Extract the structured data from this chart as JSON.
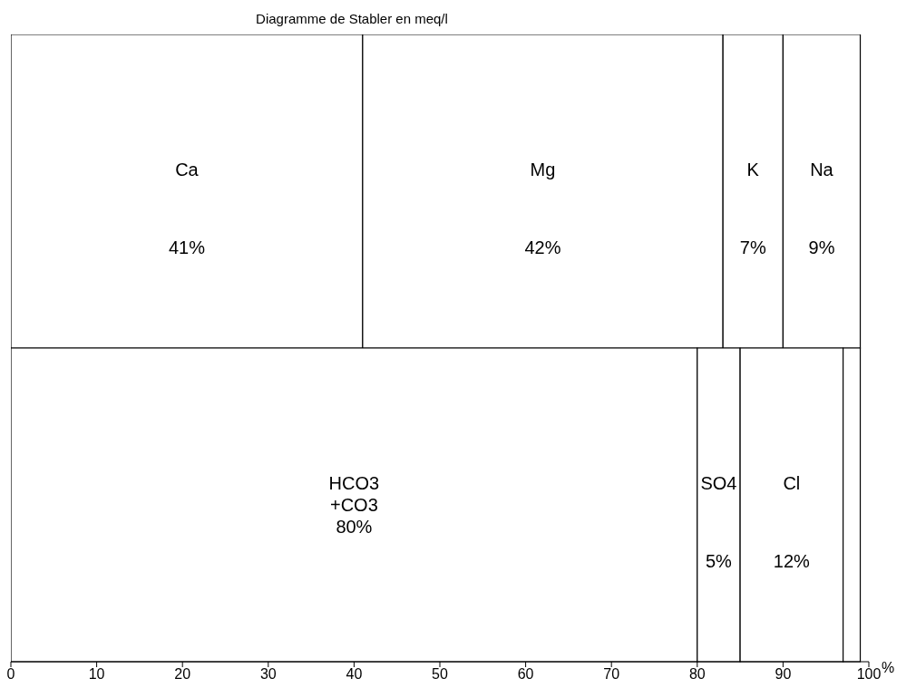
{
  "chart_data": {
    "type": "bar",
    "title": "Diagramme de Stabler en  meq/l",
    "xlabel": "%",
    "orientation": "horizontal",
    "stacked": true,
    "categories": [
      null,
      null
    ],
    "tick_labels": "x",
    "xlim": [
      0,
      100
    ],
    "xticks": [
      0,
      10,
      20,
      30,
      40,
      50,
      60,
      70,
      80,
      90,
      100
    ],
    "series": [
      {
        "name": "Ca",
        "color": "#ffffff",
        "values": [
          41,
          null
        ],
        "value_labels": [
          "41%",
          null
        ]
      },
      {
        "name": "Mg",
        "color": "#ffffff",
        "values": [
          42,
          null
        ],
        "value_labels": [
          "42%",
          null
        ]
      },
      {
        "name": "K",
        "color": "#ffffff",
        "values": [
          7,
          null
        ],
        "value_labels": [
          "7%",
          null
        ]
      },
      {
        "name": "Na",
        "color": "#ffffff",
        "values": [
          9,
          null
        ],
        "value_labels": [
          "9%",
          null
        ]
      },
      {
        "name": "HCO3 +CO3",
        "color": "#ffffff",
        "values": [
          null,
          80
        ],
        "value_labels": [
          null,
          "80%"
        ]
      },
      {
        "name": "SO4",
        "color": "#ffffff",
        "values": [
          null,
          5
        ],
        "value_labels": [
          null,
          "5%"
        ]
      },
      {
        "name": "Cl",
        "color": "#ffffff",
        "values": [
          null,
          12
        ],
        "value_labels": [
          null,
          "12%"
        ]
      },
      {
        "color": "#ffffff",
        "values": [
          null,
          2
        ]
      }
    ]
  }
}
